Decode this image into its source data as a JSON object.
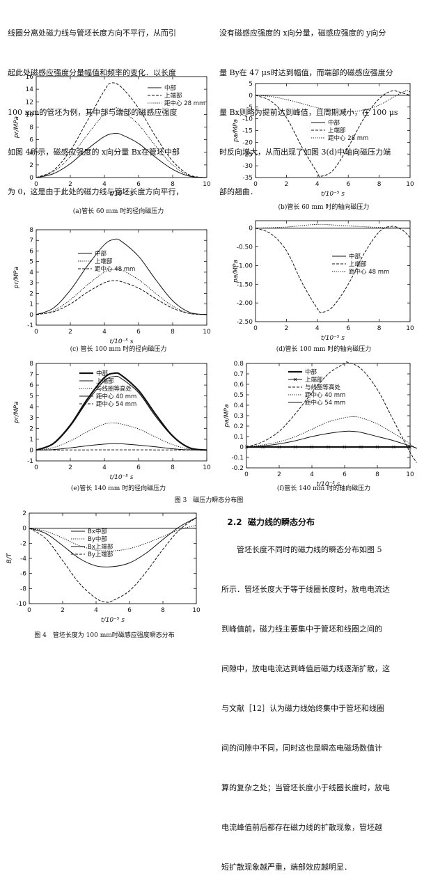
{
  "text_left_top": [
    "线圈分离处磁力线与管坯长度方向不平行，从而引",
    "起此处磁感应强度分量幅值和频率的变化．以长度",
    "100 mm的管坯为例，其中部与端部的磁感应强度",
    "如图 4所示，磁感应强度的 x向分量 Bx在管坯中部",
    "为 0，这是由于此处的磁力线与管坯长度方向平行，"
  ],
  "text_right_top": [
    "没有磁感应强度的 x向分量，磁感应强度的 y向分",
    "量 By在 47 μs时达到幅值，而端部的磁感应强度分",
    "量 Bx则略为提前达到峰值，且周期减小，在 100 μs",
    "时反向增大，从而出现了如图 3(d)中轴向磁压力端",
    "部的翘曲．"
  ],
  "fig3_caption": "图 3　磁压力瞬态分布图",
  "fig4_caption": "图 4　管坯长度为 100 mm时磁感应强度瞬态分布",
  "section": {
    "number": "2.2",
    "title": "磁力线的瞬态分布"
  },
  "text_right_bottom": [
    "管坯长度不同时的磁力线的瞬态分布如图 5",
    "所示．管坯长度大于等于线圈长度时，放电电流达",
    "到峰值前，磁力线主要集中于管坯和线圈之间的",
    "间隙中，放电电流达到峰值后磁力线逐渐扩散，这",
    "与文献［12］认为磁力线始终集中于管坯和线圈",
    "间的间隙中不同，同时这也是瞬态电磁场数值计",
    "算的复杂之处；当管坯长度小于线圈长度时，放电",
    "电流峰值前后都存在磁力线的扩散现象，管坯越",
    "短扩散现象越严重，端部效应越明显．"
  ],
  "chart_data": [
    {
      "id": "a",
      "type": "line",
      "caption": "(a)管长 60 mm 时的径向磁压力",
      "xlabel": "t/10⁻⁵ s",
      "ylabel": "pr/MPa",
      "xlim": [
        0,
        10
      ],
      "ylim": [
        0,
        16
      ],
      "xticks": [
        0,
        2,
        4,
        6,
        8,
        10
      ],
      "yticks": [
        0,
        2,
        4,
        6,
        8,
        10,
        12,
        14,
        16
      ],
      "legend": [
        "中部",
        "上端部",
        "距中心 28 mm"
      ],
      "series": [
        {
          "name": "中部",
          "style": "solid",
          "x": [
            0,
            1,
            2,
            3,
            4,
            4.6,
            5,
            6,
            7,
            8,
            9,
            10
          ],
          "y": [
            0,
            0.6,
            2.2,
            4.5,
            6.5,
            7,
            6.8,
            5.4,
            3.2,
            1.3,
            0.2,
            0
          ]
        },
        {
          "name": "上端部",
          "style": "dashed",
          "x": [
            0,
            1,
            2,
            3,
            4,
            4.4,
            5,
            6,
            7,
            8,
            9,
            10
          ],
          "y": [
            0,
            1.1,
            4.3,
            9,
            13.8,
            15,
            14.3,
            11,
            6.5,
            2.6,
            0.4,
            0
          ]
        },
        {
          "name": "距中心 28 mm",
          "style": "dotted",
          "x": [
            0,
            1,
            2,
            3,
            4,
            4.6,
            5,
            6,
            7,
            8,
            9,
            10
          ],
          "y": [
            0,
            0.9,
            3.3,
            6.8,
            10.1,
            11,
            10.7,
            8.4,
            5,
            2,
            0.3,
            0
          ]
        }
      ]
    },
    {
      "id": "b",
      "type": "line",
      "caption": "(b)管长 60 mm 时的轴向磁压力",
      "xlabel": "t/10⁻⁵ s",
      "ylabel": "pa/MPa",
      "xlim": [
        0,
        10
      ],
      "ylim": [
        -35,
        5
      ],
      "xticks": [
        0,
        2,
        4,
        6,
        8,
        10
      ],
      "yticks": [
        5,
        0,
        -5,
        -10,
        -15,
        -20,
        -25,
        -30,
        -35
      ],
      "legend": [
        "中部",
        "上端部",
        "距中心 28 mm"
      ],
      "series": [
        {
          "name": "中部",
          "style": "solid",
          "x": [
            0,
            2,
            4,
            6,
            8,
            10
          ],
          "y": [
            0,
            0,
            0,
            0,
            0,
            0
          ]
        },
        {
          "name": "上端部",
          "style": "dashed",
          "x": [
            0,
            1,
            2,
            3,
            4,
            4.2,
            5,
            6,
            7,
            8,
            8.8,
            9.5,
            10
          ],
          "y": [
            0,
            -2.5,
            -9.5,
            -22,
            -33,
            -34.5,
            -32,
            -22,
            -10,
            -1.5,
            1.8,
            1,
            0
          ]
        },
        {
          "name": "距中心 28 mm",
          "style": "dotted",
          "x": [
            0,
            1,
            2,
            3,
            4,
            5,
            6,
            7,
            8,
            9,
            9.7,
            10
          ],
          "y": [
            0,
            -0.5,
            -1.8,
            -3.5,
            -5.3,
            -6.5,
            -7,
            -6.3,
            -4.2,
            -0.5,
            1.8,
            1.5
          ]
        }
      ]
    },
    {
      "id": "c",
      "type": "line",
      "caption": "(c)  管长 100  mm 时的径向磁压力",
      "xlabel": "t/10⁻⁵ s",
      "ylabel": "pr/MPa",
      "xlim": [
        0,
        10
      ],
      "ylim": [
        -1,
        8
      ],
      "xticks": [
        0,
        2,
        4,
        6,
        8,
        10
      ],
      "yticks": [
        -1,
        0,
        1,
        2,
        3,
        4,
        5,
        6,
        7,
        8
      ],
      "legend": [
        "中部",
        "上端部",
        "距中心 48 mm"
      ],
      "series": [
        {
          "name": "中部",
          "style": "solid",
          "x": [
            0,
            1,
            2,
            3,
            4,
            4.6,
            5,
            6,
            7,
            8,
            9,
            10
          ],
          "y": [
            0,
            0.6,
            2.3,
            4.6,
            6.6,
            7.1,
            6.9,
            5.5,
            3.3,
            1.3,
            0.2,
            0
          ]
        },
        {
          "name": "上端部",
          "style": "dotted",
          "x": [
            0,
            1,
            2,
            3,
            4,
            4.6,
            5,
            6,
            7,
            8,
            9,
            10
          ],
          "y": [
            0,
            0.35,
            1.4,
            2.8,
            4,
            4.3,
            4.2,
            3.3,
            2,
            0.8,
            0.1,
            0
          ]
        },
        {
          "name": "距中心 48 mm",
          "style": "dashed",
          "x": [
            0,
            1,
            2,
            3,
            4,
            4.6,
            5,
            6,
            7,
            8,
            9,
            10
          ],
          "y": [
            0,
            0.25,
            1,
            2.1,
            3,
            3.2,
            3.1,
            2.5,
            1.5,
            0.6,
            0.1,
            0
          ]
        }
      ]
    },
    {
      "id": "d",
      "type": "line",
      "caption": "(d)管长 100  mm 时的轴向磁压力",
      "xlabel": "t/10⁻⁵ s",
      "ylabel": "pa/MPa",
      "xlim": [
        0,
        10
      ],
      "ylim": [
        -2.5,
        0.2
      ],
      "xticks": [
        0,
        2,
        4,
        6,
        8,
        10
      ],
      "yticks": [
        0,
        -0.5,
        -1.0,
        -1.5,
        -2.0,
        -2.5
      ],
      "legend": [
        "中部",
        "上端部",
        "距中心 48 mm"
      ],
      "series": [
        {
          "name": "中部",
          "style": "solid",
          "x": [
            0,
            2,
            4,
            6,
            8,
            10
          ],
          "y": [
            0,
            0,
            0,
            0,
            0,
            0
          ]
        },
        {
          "name": "上端部",
          "style": "dashed",
          "x": [
            0,
            1,
            2,
            3,
            4,
            4.3,
            5,
            6,
            7,
            8,
            8.8,
            9.5,
            10
          ],
          "y": [
            0,
            -0.15,
            -0.6,
            -1.45,
            -2.15,
            -2.25,
            -2.1,
            -1.5,
            -0.7,
            -0.1,
            0.05,
            -0.05,
            -0.25
          ]
        },
        {
          "name": "距中心 48 mm",
          "style": "dotted",
          "x": [
            0,
            2,
            4,
            6,
            8,
            10
          ],
          "y": [
            0,
            0.03,
            0.1,
            0.06,
            0.02,
            0
          ]
        }
      ]
    },
    {
      "id": "e",
      "type": "line",
      "caption": "(e)管长 140  mm 时的径向磁压力",
      "xlabel": "t/10⁻⁵ s",
      "ylabel": "pr/MPa",
      "xlim": [
        0,
        10
      ],
      "ylim": [
        -1,
        8
      ],
      "xticks": [
        0,
        2,
        4,
        6,
        8,
        10
      ],
      "yticks": [
        -1,
        0,
        1,
        2,
        3,
        4,
        5,
        6,
        7,
        8
      ],
      "legend": [
        "中部",
        "上端部",
        "与线圈等高处",
        "距中心 40 mm",
        "距中心 54 mm"
      ],
      "series": [
        {
          "name": "中部",
          "style": "bold",
          "x": [
            0,
            1,
            2,
            3,
            4,
            4.6,
            5,
            6,
            7,
            8,
            9,
            10
          ],
          "y": [
            0,
            0.6,
            2.3,
            4.7,
            6.7,
            7.1,
            6.9,
            5.5,
            3.3,
            1.3,
            0.2,
            0
          ]
        },
        {
          "name": "上端部",
          "style": "solid",
          "x": [
            0,
            1,
            2,
            3,
            4,
            4.6,
            5,
            6,
            7,
            8,
            9,
            10
          ],
          "y": [
            0,
            0.05,
            0.2,
            0.4,
            0.55,
            0.6,
            0.58,
            0.45,
            0.3,
            0.12,
            0.02,
            0
          ]
        },
        {
          "name": "与线圈等高处",
          "style": "dotted",
          "x": [
            0,
            1,
            2,
            3,
            4,
            4.6,
            5,
            6,
            7,
            8,
            9,
            10
          ],
          "y": [
            0,
            0.22,
            0.85,
            1.7,
            2.4,
            2.5,
            2.4,
            1.95,
            1.2,
            0.5,
            0.08,
            0
          ]
        },
        {
          "name": "距中心 40 mm",
          "style": "solid",
          "x": [
            0,
            1,
            2,
            3,
            4,
            4.6,
            5,
            6,
            7,
            8,
            9,
            10
          ],
          "y": [
            0,
            0.55,
            2.2,
            4.5,
            6.4,
            6.8,
            6.6,
            5.3,
            3.1,
            1.25,
            0.2,
            0
          ]
        },
        {
          "name": "距中心 54 mm",
          "style": "dashed",
          "x": [
            0,
            2,
            4,
            6,
            8,
            10
          ],
          "y": [
            0,
            0.01,
            0.02,
            0.02,
            0.01,
            0
          ]
        }
      ]
    },
    {
      "id": "f",
      "type": "line",
      "caption": "(f)管长 140  mm 时的轴向磁压力",
      "xlabel": "t/10⁻⁵ s",
      "ylabel": "pa/MPa",
      "xlim": [
        0,
        10
      ],
      "ylim": [
        -0.2,
        0.8
      ],
      "xticks": [
        0,
        2,
        4,
        6,
        8,
        10
      ],
      "yticks": [
        -0.2,
        -0.1,
        0,
        0.1,
        0.2,
        0.3,
        0.4,
        0.5,
        0.6,
        0.7,
        0.8
      ],
      "legend": [
        "中部",
        "上端部",
        "与线圈等高处",
        "距中心 40 mm",
        "距中心 54 mm"
      ],
      "series": [
        {
          "name": "中部",
          "style": "bold",
          "x": [
            0,
            2,
            4,
            6,
            8,
            10
          ],
          "y": [
            0,
            0,
            0,
            0,
            0,
            0
          ]
        },
        {
          "name": "上端部",
          "style": "cross",
          "x": [
            0,
            1,
            2,
            3,
            4,
            5,
            6,
            7,
            8,
            9,
            10
          ],
          "y": [
            0,
            0,
            0,
            0,
            0,
            0,
            0,
            0,
            0,
            0,
            0
          ]
        },
        {
          "name": "与线圈等高处",
          "style": "dashed",
          "x": [
            0,
            1,
            2,
            3,
            4,
            5,
            6,
            6.2,
            7,
            8,
            9,
            10,
            10.4
          ],
          "y": [
            0,
            0.05,
            0.15,
            0.32,
            0.52,
            0.7,
            0.8,
            0.81,
            0.75,
            0.55,
            0.25,
            -0.05,
            -0.15
          ]
        },
        {
          "name": "距中心 40 mm",
          "style": "dotted",
          "x": [
            0,
            1,
            2,
            3,
            4,
            5,
            6,
            6.5,
            7,
            8,
            9,
            10,
            10.4
          ],
          "y": [
            0,
            0.02,
            0.05,
            0.1,
            0.17,
            0.24,
            0.28,
            0.29,
            0.28,
            0.22,
            0.13,
            0.03,
            -0.02
          ]
        },
        {
          "name": "距中心 54 mm",
          "style": "solid",
          "x": [
            0,
            1,
            2,
            3,
            4,
            5,
            6,
            6.5,
            7,
            8,
            9,
            10,
            10.4
          ],
          "y": [
            0,
            0.01,
            0.03,
            0.06,
            0.1,
            0.13,
            0.15,
            0.15,
            0.14,
            0.1,
            0.06,
            0.01,
            -0.01
          ]
        }
      ]
    },
    {
      "id": "fig4",
      "type": "line",
      "caption": "",
      "xlabel": "t/10⁻⁵ s",
      "ylabel": "B/T",
      "xlim": [
        0,
        10
      ],
      "ylim": [
        -10,
        2
      ],
      "xticks": [
        0,
        2,
        4,
        6,
        8,
        10
      ],
      "yticks": [
        2,
        0,
        -2,
        -4,
        -6,
        -8,
        -10
      ],
      "legend": [
        "Bx中部",
        "By中部",
        "Bx上端部",
        "By上端部"
      ],
      "series": [
        {
          "name": "Bx中部",
          "style": "solid",
          "x": [
            0,
            2,
            4,
            6,
            8,
            10
          ],
          "y": [
            0,
            0,
            0,
            0,
            0,
            0
          ]
        },
        {
          "name": "By中部",
          "style": "dotted",
          "x": [
            0,
            1,
            2,
            3,
            4,
            5,
            6,
            7,
            8,
            9,
            10
          ],
          "y": [
            0,
            -0.4,
            -1.3,
            -2.3,
            -2.9,
            -3,
            -2.7,
            -2,
            -1.1,
            -0.2,
            0.4
          ]
        },
        {
          "name": "Bx上端部",
          "style": "solid",
          "x": [
            0,
            1,
            2,
            3,
            4,
            5,
            6,
            7,
            8,
            9,
            10
          ],
          "y": [
            0,
            -0.7,
            -2.3,
            -4,
            -5,
            -5.1,
            -4.6,
            -3.3,
            -1.5,
            0.2,
            1.4
          ]
        },
        {
          "name": "By上端部",
          "style": "dashed",
          "x": [
            0,
            1,
            2,
            3,
            4,
            4.6,
            5,
            6,
            7,
            8,
            9,
            10
          ],
          "y": [
            0,
            -1.4,
            -4.3,
            -7.3,
            -9.3,
            -9.8,
            -9.6,
            -8.3,
            -5.8,
            -2.8,
            -0.2,
            1.4
          ]
        }
      ]
    }
  ]
}
